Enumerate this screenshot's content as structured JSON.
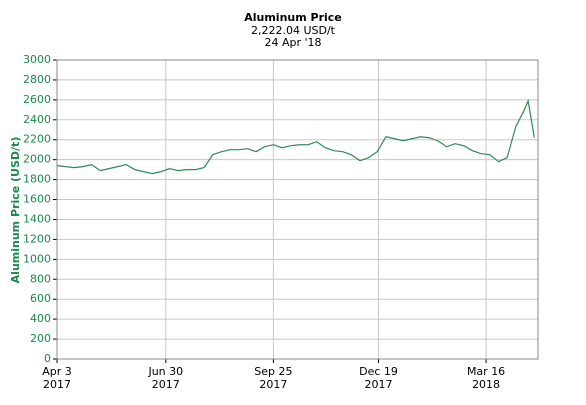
{
  "chart_data": {
    "type": "line",
    "title": "Aluminum Price",
    "subtitle": "2,222.04 USD/t",
    "date_label": "24 Apr '18",
    "y_label": "Aluminum Price (USD/t)",
    "x": [
      "2017-04-03",
      "2017-04-10",
      "2017-04-17",
      "2017-04-24",
      "2017-05-01",
      "2017-05-08",
      "2017-05-15",
      "2017-05-22",
      "2017-05-29",
      "2017-06-05",
      "2017-06-12",
      "2017-06-19",
      "2017-06-26",
      "2017-07-03",
      "2017-07-10",
      "2017-07-17",
      "2017-07-24",
      "2017-07-31",
      "2017-08-07",
      "2017-08-14",
      "2017-08-21",
      "2017-08-28",
      "2017-09-04",
      "2017-09-11",
      "2017-09-18",
      "2017-09-25",
      "2017-10-02",
      "2017-10-09",
      "2017-10-16",
      "2017-10-23",
      "2017-10-30",
      "2017-11-06",
      "2017-11-13",
      "2017-11-20",
      "2017-11-27",
      "2017-12-04",
      "2017-12-11",
      "2017-12-18",
      "2017-12-25",
      "2018-01-01",
      "2018-01-08",
      "2018-01-15",
      "2018-01-22",
      "2018-01-29",
      "2018-02-05",
      "2018-02-12",
      "2018-02-19",
      "2018-02-26",
      "2018-03-05",
      "2018-03-12",
      "2018-03-19",
      "2018-03-26",
      "2018-04-02",
      "2018-04-09",
      "2018-04-16",
      "2018-04-19",
      "2018-04-24"
    ],
    "series": [
      {
        "name": "Aluminum Price",
        "color": "#2e8b57",
        "values": [
          1940,
          1930,
          1920,
          1930,
          1950,
          1890,
          1910,
          1930,
          1950,
          1900,
          1880,
          1860,
          1880,
          1910,
          1890,
          1900,
          1900,
          1920,
          2050,
          2080,
          2100,
          2100,
          2110,
          2080,
          2130,
          2150,
          2120,
          2140,
          2150,
          2150,
          2180,
          2120,
          2090,
          2080,
          2050,
          1990,
          2020,
          2080,
          2230,
          2210,
          2190,
          2210,
          2230,
          2220,
          2190,
          2130,
          2160,
          2140,
          2090,
          2060,
          2050,
          1980,
          2020,
          2330,
          2500,
          2590,
          2222.04
        ]
      }
    ],
    "xlim": [
      "2017-04-03",
      "2018-04-27"
    ],
    "xticks": [
      {
        "value": "2017-04-03",
        "label": "Apr 3\n2017"
      },
      {
        "value": "2017-06-30",
        "label": "Jun 30\n2017"
      },
      {
        "value": "2017-09-25",
        "label": "Sep 25\n2017"
      },
      {
        "value": "2017-12-19",
        "label": "Dec 19\n2017"
      },
      {
        "value": "2018-03-16",
        "label": "Mar 16\n2018"
      }
    ],
    "ylim": [
      0,
      3000
    ],
    "yticks": [
      0,
      200,
      400,
      600,
      800,
      1000,
      1200,
      1400,
      1600,
      1800,
      2000,
      2200,
      2400,
      2600,
      2800,
      3000
    ],
    "grid": true
  }
}
